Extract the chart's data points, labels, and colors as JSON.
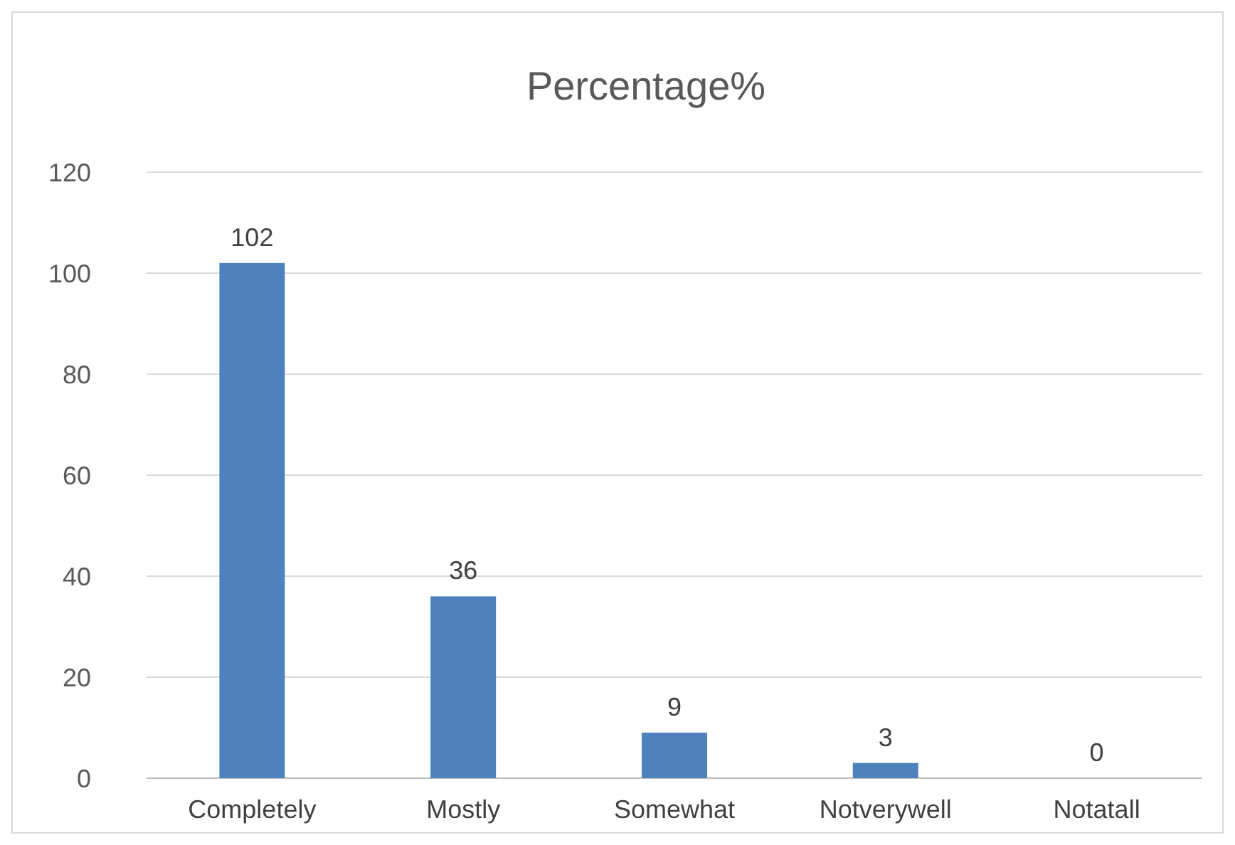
{
  "chart_data": {
    "type": "bar",
    "title": "Percentage%",
    "categories": [
      "Completely",
      "Mostly",
      "Somewhat",
      "Notverywell",
      "Notatall"
    ],
    "values": [
      102,
      36,
      9,
      3,
      0
    ],
    "color": "#4f81bd",
    "ylim": [
      0,
      120
    ],
    "yticks": [
      0,
      20,
      40,
      60,
      80,
      100,
      120
    ],
    "grid": "y",
    "data_labels": true
  }
}
